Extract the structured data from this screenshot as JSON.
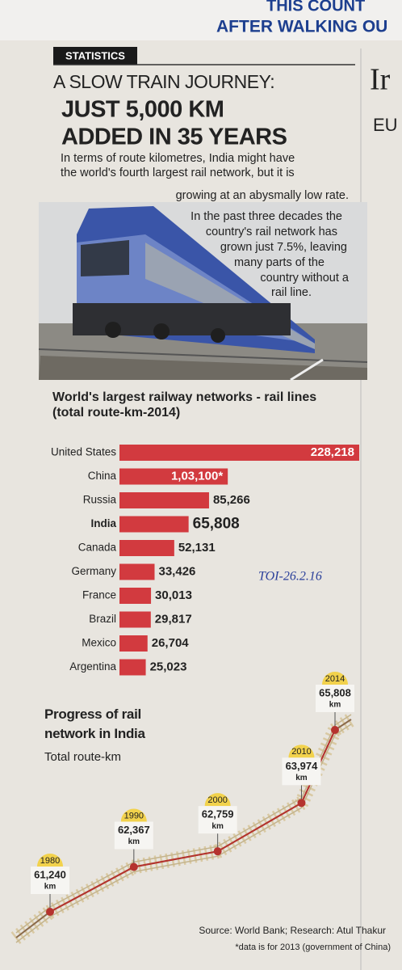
{
  "masthead": {
    "line1": "THIS COUNT",
    "line2": "AFTER WALKING OU"
  },
  "section": "STATISTICS",
  "headline": [
    "A SLOW TRAIN JOURNEY:",
    "JUST 5,000 KM",
    "ADDED IN 35 YEARS"
  ],
  "body": [
    "In terms of route kilometres, India might have",
    "the world's fourth largest rail network, but it is",
    "growing at an abysmally low rate.",
    "In the past three decades the",
    "country's rail network has",
    "grown just 7.5%, leaving",
    "many parts of the",
    "country without a",
    "rail line."
  ],
  "side": {
    "headline": "Ir",
    "subhead": "EU"
  },
  "handwriting": "TOI-26.2.16",
  "chart_data": [
    {
      "type": "bar",
      "orientation": "horizontal",
      "title": "World's largest railway networks - rail lines",
      "subtitle": "(total route-km-2014)",
      "categories": [
        "United States",
        "China",
        "Russia",
        "India",
        "Canada",
        "Germany",
        "France",
        "Brazil",
        "Mexico",
        "Argentina"
      ],
      "values": [
        228218,
        103100,
        85266,
        65808,
        52131,
        33426,
        30013,
        29817,
        26704,
        25023
      ],
      "value_labels": [
        "228,218",
        "1,03,100*",
        "85,266",
        "65,808",
        "52,131",
        "33,426",
        "30,013",
        "29,817",
        "26,704",
        "25,023"
      ],
      "color": "#d23a3f"
    },
    {
      "type": "line",
      "title": "Progress of rail network in India",
      "subtitle": "Total route-km",
      "x": [
        1980,
        1990,
        2000,
        2010,
        2014
      ],
      "values": [
        61240,
        62367,
        62759,
        63974,
        65808
      ],
      "value_labels": [
        "61,240",
        "62,367",
        "62,759",
        "63,974",
        "65,808"
      ],
      "unit": "km",
      "color": "#b5332e"
    }
  ],
  "source": "Source: World Bank; Research: Atul Thakur",
  "footnote": "*data is for 2013 (government of China)"
}
